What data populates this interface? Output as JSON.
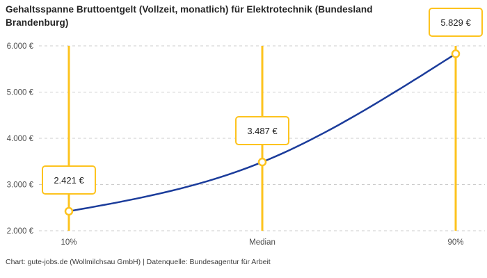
{
  "title": {
    "lines": [
      "Gehaltsspanne Bruttoentgelt (Vollzeit, monatlich) für Elektrotechnik (Bundesland",
      "Brandenburg)"
    ]
  },
  "footer": {
    "text": "Chart: gute-jobs.de (Wollmilchsau GmbH) | Datenquelle: Bundesagentur für Arbeit"
  },
  "chart_data": {
    "type": "line",
    "title": "Gehaltsspanne Bruttoentgelt (Vollzeit, monatlich) für Elektrotechnik (Bundesland Brandenburg)",
    "categories": [
      "10%",
      "Median",
      "90%"
    ],
    "values": [
      2421,
      3487,
      5829
    ],
    "value_labels": [
      "2.421 €",
      "3.487 €",
      "5.829 €"
    ],
    "y_ticks": [
      2000,
      3000,
      4000,
      5000,
      6000
    ],
    "y_tick_labels": [
      "2.000 €",
      "3.000 €",
      "4.000 €",
      "5.000 €",
      "6.000 €"
    ],
    "ylim": [
      2000,
      6000
    ],
    "grid": "horizontal-dashed",
    "legend": "none",
    "colors": {
      "line": "#1b3c9b",
      "highlight": "#fdc31e",
      "grid": "#cccccc",
      "marker_fill": "#ffffff"
    }
  }
}
